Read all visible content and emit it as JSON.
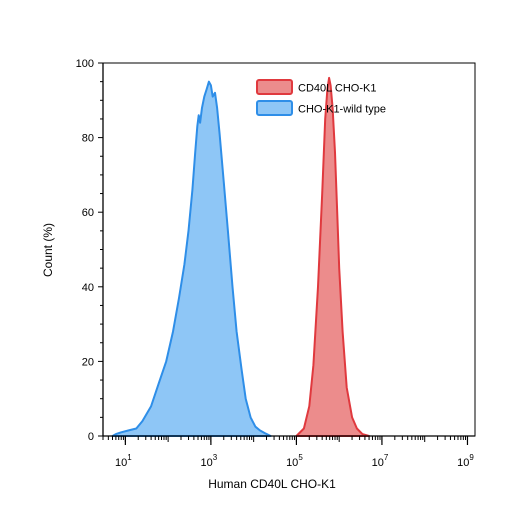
{
  "colors": {
    "series_red_fill": "#ec8c8c",
    "series_red_stroke": "#e0393e",
    "series_blue_fill": "#8ec6f6",
    "series_blue_stroke": "#2e8ee8",
    "axis": "#000000"
  },
  "chart_data": {
    "type": "area",
    "title": "",
    "xlabel": "Human CD40L CHO-K1",
    "ylabel": "Count (%)",
    "xscale": "log",
    "xlim": [
      3,
      1500000000
    ],
    "ylim": [
      0,
      100
    ],
    "grid": false,
    "legend_position": "top-right",
    "y_ticks": [
      0,
      20,
      40,
      60,
      80,
      100
    ],
    "y_tick_labels": [
      "0",
      "20",
      "40",
      "60",
      "80",
      "100"
    ],
    "x_major_ticks": [
      10,
      1000,
      100000,
      10000000,
      1000000000
    ],
    "x_tick_labels": [
      {
        "base": "10",
        "exp": "1"
      },
      {
        "base": "10",
        "exp": "3"
      },
      {
        "base": "10",
        "exp": "5"
      },
      {
        "base": "10",
        "exp": "7"
      },
      {
        "base": "10",
        "exp": "9"
      }
    ],
    "series": [
      {
        "name": "CD40L CHO-K1",
        "fill": "#ec8c8c",
        "stroke": "#e0393e",
        "points": [
          [
            100000,
            0
          ],
          [
            150000,
            2
          ],
          [
            200000,
            8
          ],
          [
            250000,
            19
          ],
          [
            320000,
            40
          ],
          [
            400000,
            65
          ],
          [
            470000,
            85
          ],
          [
            530000,
            93
          ],
          [
            580000,
            96
          ],
          [
            630000,
            94
          ],
          [
            700000,
            88
          ],
          [
            800000,
            76
          ],
          [
            900000,
            60
          ],
          [
            1000000,
            45
          ],
          [
            1200000,
            28
          ],
          [
            1500000,
            13
          ],
          [
            2000000,
            5
          ],
          [
            2600000,
            2
          ],
          [
            3500000,
            0.5
          ],
          [
            5000000,
            0
          ]
        ]
      },
      {
        "name": "CHO-K1-wild type",
        "fill": "#8ec6f6",
        "stroke": "#2e8ee8",
        "points": [
          [
            5,
            0
          ],
          [
            6,
            0.5
          ],
          [
            8,
            1
          ],
          [
            12,
            1.5
          ],
          [
            18,
            2
          ],
          [
            25,
            4
          ],
          [
            40,
            8
          ],
          [
            60,
            14
          ],
          [
            90,
            20
          ],
          [
            130,
            28
          ],
          [
            180,
            37
          ],
          [
            240,
            46
          ],
          [
            300,
            55
          ],
          [
            370,
            66
          ],
          [
            430,
            76
          ],
          [
            480,
            83
          ],
          [
            520,
            86
          ],
          [
            560,
            84
          ],
          [
            620,
            88
          ],
          [
            700,
            91
          ],
          [
            800,
            93
          ],
          [
            900,
            95
          ],
          [
            1000,
            94
          ],
          [
            1100,
            91
          ],
          [
            1250,
            92
          ],
          [
            1400,
            88
          ],
          [
            1600,
            81
          ],
          [
            2000,
            68
          ],
          [
            2500,
            55
          ],
          [
            3200,
            40
          ],
          [
            4000,
            28
          ],
          [
            5200,
            18
          ],
          [
            6500,
            10
          ],
          [
            8500,
            5
          ],
          [
            11000,
            2.5
          ],
          [
            14000,
            1.5
          ],
          [
            18000,
            0.8
          ],
          [
            25000,
            0
          ]
        ]
      }
    ]
  }
}
